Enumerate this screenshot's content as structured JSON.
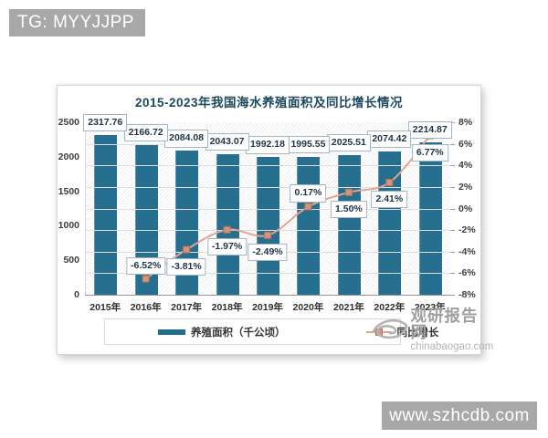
{
  "overlay": {
    "top_badge": "TG: MYYJJPP",
    "bottom_badge": "www.szhcdb.com"
  },
  "watermark": {
    "name": "观研报告网",
    "domain": "chinabaogao.com"
  },
  "chart_data": {
    "type": "bar",
    "subtype": "bar-line-combo",
    "title": "2015-2023年我国海水养殖面积及同比增长情况",
    "categories": [
      "2015年",
      "2016年",
      "2017年",
      "2018年",
      "2019年",
      "2020年",
      "2021年",
      "2022年",
      "2023年"
    ],
    "series": [
      {
        "name": "养殖面积（千公顷）",
        "type": "bar",
        "axis": "left",
        "values": [
          2317.76,
          2166.72,
          2084.08,
          2043.07,
          1992.18,
          1995.55,
          2025.51,
          2074.42,
          2214.87
        ],
        "labels": [
          "2317.76",
          "2166.72",
          "2084.08",
          "2043.07",
          "1992.18",
          "1995.55",
          "2025.51",
          "2074.42",
          "2214.87"
        ]
      },
      {
        "name": "同比增长",
        "type": "line",
        "axis": "right",
        "values": [
          null,
          -6.52,
          -3.81,
          -1.97,
          -2.49,
          0.17,
          1.5,
          2.41,
          6.77
        ],
        "labels": [
          null,
          "-6.52%",
          "-3.81%",
          "-1.97%",
          "-2.49%",
          "0.17%",
          "1.50%",
          "2.41%",
          "6.77%"
        ],
        "label_positions": [
          null,
          "above",
          "below",
          "below",
          "below",
          "above",
          "below",
          "below",
          "below"
        ]
      }
    ],
    "left_axis": {
      "min": 0,
      "max": 2500,
      "ticks": [
        "0",
        "500",
        "1000",
        "1500",
        "2000",
        "2500"
      ]
    },
    "right_axis": {
      "min": -8,
      "max": 8,
      "ticks": [
        "8%",
        "6%",
        "4%",
        "2%",
        "0%",
        "-2%",
        "-4%",
        "-6%",
        "-8%"
      ]
    },
    "legend_position": "bottom",
    "grid": true
  },
  "colors": {
    "bar": "#226e90",
    "line": "#e3a48d",
    "marker_fill": "#d5937b",
    "marker_border": "#b2755b",
    "title": "#1c4960",
    "label_box_border": "#a4b6bf",
    "badge_bg": "#a8a8a8",
    "watermark_gray": "#9e9e9e"
  }
}
